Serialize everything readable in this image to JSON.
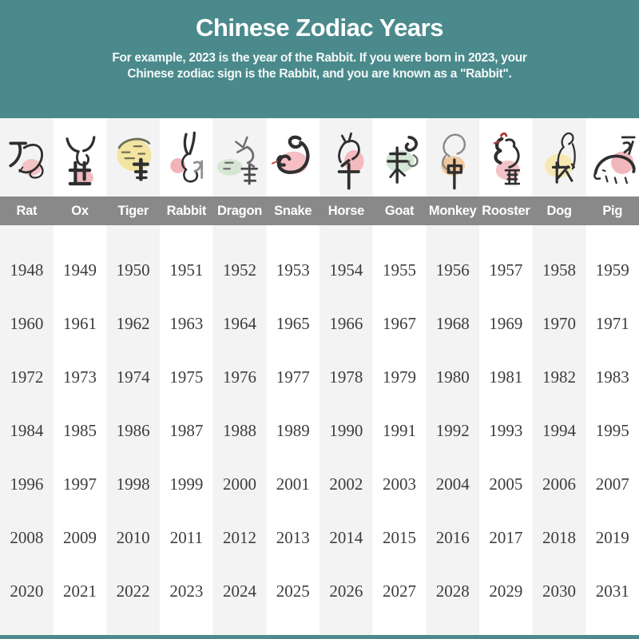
{
  "header": {
    "title": "Chinese Zodiac Years",
    "subtitle_line1": "For example, 2023 is the year of the Rabbit. If you were born in 2023, your",
    "subtitle_line2": "Chinese zodiac sign is the Rabbit, and you are known as a \"Rabbit\"."
  },
  "colors": {
    "header_teal": "#4a8a8c",
    "name_band_gray": "#898989",
    "column_stripe_gray": "#f3f3f3",
    "year_text": "#3d3d3d",
    "ink_black": "#2f2f2f"
  },
  "animals": [
    {
      "label": "Rat",
      "icon": "rat-zodiac-icon",
      "blob_color": "#f2b9bc"
    },
    {
      "label": "Ox",
      "icon": "ox-zodiac-icon",
      "blob_color": "#f0adb0"
    },
    {
      "label": "Tiger",
      "icon": "tiger-zodiac-icon",
      "blob_color": "#f2e193"
    },
    {
      "label": "Rabbit",
      "icon": "rabbit-zodiac-icon",
      "blob_color": "#efa6ab"
    },
    {
      "label": "Dragon",
      "icon": "dragon-zodiac-icon",
      "blob_color": "#cfe3cd"
    },
    {
      "label": "Snake",
      "icon": "snake-zodiac-icon",
      "blob_color": "#f3b4ba"
    },
    {
      "label": "Horse",
      "icon": "horse-zodiac-icon",
      "blob_color": "#f3aeb4"
    },
    {
      "label": "Goat",
      "icon": "goat-zodiac-icon",
      "blob_color": "#cce3cf"
    },
    {
      "label": "Monkey",
      "icon": "monkey-zodiac-icon",
      "blob_color": "#efc08c"
    },
    {
      "label": "Rooster",
      "icon": "rooster-zodiac-icon",
      "blob_color": "#f0b7c0"
    },
    {
      "label": "Dog",
      "icon": "dog-zodiac-icon",
      "blob_color": "#f4e5a8"
    },
    {
      "label": "Pig",
      "icon": "pig-zodiac-icon",
      "blob_color": "#eeaab2"
    }
  ],
  "years_rows": [
    [
      1948,
      1949,
      1950,
      1951,
      1952,
      1953,
      1954,
      1955,
      1956,
      1957,
      1958,
      1959
    ],
    [
      1960,
      1961,
      1962,
      1963,
      1964,
      1965,
      1966,
      1967,
      1968,
      1969,
      1970,
      1971
    ],
    [
      1972,
      1973,
      1974,
      1975,
      1976,
      1977,
      1978,
      1979,
      1980,
      1981,
      1982,
      1983
    ],
    [
      1984,
      1985,
      1986,
      1987,
      1988,
      1989,
      1990,
      1991,
      1992,
      1993,
      1994,
      1995
    ],
    [
      1996,
      1997,
      1998,
      1999,
      2000,
      2001,
      2002,
      2003,
      2004,
      2005,
      2006,
      2007
    ],
    [
      2008,
      2009,
      2010,
      2011,
      2012,
      2013,
      2014,
      2015,
      2016,
      2017,
      2018,
      2019
    ],
    [
      2020,
      2021,
      2022,
      2023,
      2024,
      2025,
      2026,
      2027,
      2028,
      2029,
      2030,
      2031
    ]
  ]
}
